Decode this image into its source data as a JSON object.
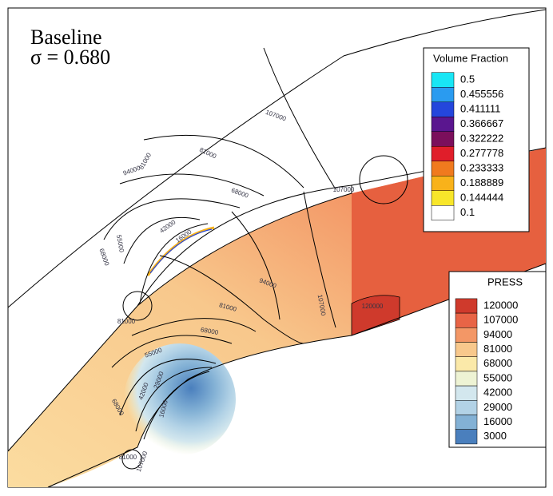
{
  "title": "Baseline",
  "subtitle": "σ = 0.680",
  "volume_fraction_legend": {
    "title": "Volume Fraction",
    "levels": [
      "0.5",
      "0.455556",
      "0.411111",
      "0.366667",
      "0.322222",
      "0.277778",
      "0.233333",
      "0.188889",
      "0.144444",
      "0.1"
    ],
    "colors": [
      "#19e6f5",
      "#2a9bf0",
      "#2446dc",
      "#5a168f",
      "#7b0f5c",
      "#e01e2a",
      "#f07a1e",
      "#f9b21a",
      "#f8e62a",
      "#ffffff"
    ]
  },
  "press_legend": {
    "title": "PRESS",
    "levels": [
      "120000",
      "107000",
      "94000",
      "81000",
      "68000",
      "55000",
      "42000",
      "29000",
      "16000",
      "3000"
    ],
    "colors": [
      "#cf3a2c",
      "#e86446",
      "#f39766",
      "#f8c88c",
      "#fbe9a9",
      "#eef3d4",
      "#d3e7ee",
      "#b2d2e6",
      "#83b1d5",
      "#4a7fbd"
    ]
  },
  "contour_labels": [
    "107000",
    "81000",
    "94000",
    "81000",
    "68000",
    "42000",
    "16000",
    "55000",
    "68000",
    "107000",
    "94000",
    "81000",
    "68000",
    "107000",
    "120000",
    "81000",
    "55000",
    "42000",
    "29000",
    "16000",
    "68000",
    "81000",
    "107000"
  ]
}
